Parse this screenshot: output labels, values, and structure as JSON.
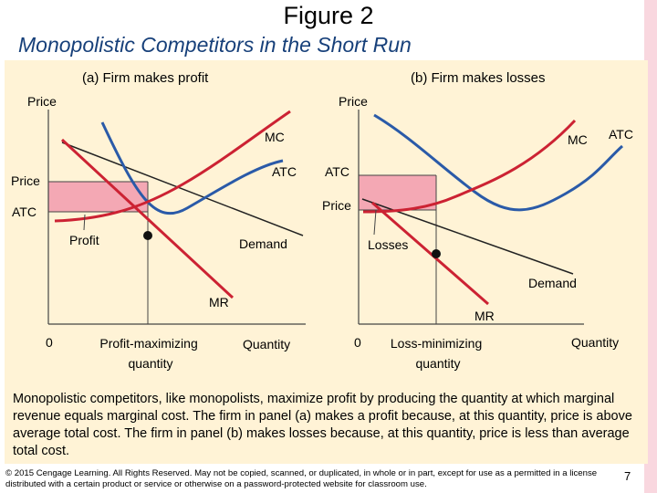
{
  "title": "Figure 2",
  "subtitle": "Monopolistic Competitors in the Short Run",
  "colors": {
    "mc": "#cc2233",
    "atc": "#2a5aa8",
    "demand": "#222222",
    "shade": "#f4a8b4",
    "panel_bg": "#fff3d6",
    "subtitle": "#17407a"
  },
  "panel_a": {
    "heading": "(a) Firm makes profit",
    "y_axis_label": "Price",
    "mc_label": "MC",
    "atc_label": "ATC",
    "price_label": "Price",
    "atc_level_label": "ATC",
    "area_label": "Profit",
    "demand_label": "Demand",
    "mr_label": "MR",
    "origin_label": "0",
    "quantity_marker_label": "Profit-maximizing quantity",
    "x_axis_label": "Quantity"
  },
  "panel_b": {
    "heading": "(b) Firm makes losses",
    "y_axis_label": "Price",
    "mc_label": "MC",
    "atc_label": "ATC",
    "atc_level_label": "ATC",
    "price_label": "Price",
    "area_label": "Losses",
    "demand_label": "Demand",
    "mr_label": "MR",
    "origin_label": "0",
    "quantity_marker_label": "Loss-minimizing quantity",
    "x_axis_label": "Quantity"
  },
  "caption": "Monopolistic competitors, like monopolists, maximize profit by producing the quantity at which marginal revenue equals marginal cost. The firm in panel (a) makes a profit because, at this quantity, price is above average total cost. The firm in panel (b) makes losses because, at this quantity, price is less than average total cost.",
  "footer": "© 2015 Cengage Learning. All Rights Reserved. May not be copied, scanned, or duplicated, in whole or in part, except for use as a permitted in a license distributed with a certain product or service or otherwise on a password-protected website for classroom use.",
  "page_number": "7"
}
